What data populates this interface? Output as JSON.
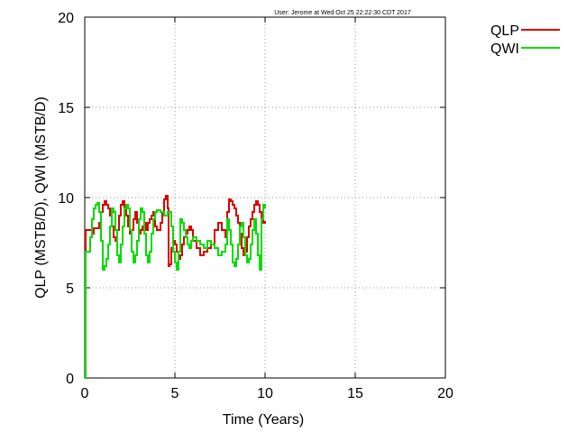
{
  "header": {
    "user_stamp": "User: Jerome at Wed Oct 25 22:22:30 CDT 2017"
  },
  "chart_data": {
    "type": "line",
    "step": true,
    "xlabel": "Time (Years)",
    "ylabel": "QLP (MSTB/D), QWI (MSTB/D)",
    "xlim": [
      0,
      20
    ],
    "ylim": [
      0,
      20
    ],
    "xticks": [
      0,
      5,
      10,
      15,
      20
    ],
    "yticks": [
      0,
      5,
      10,
      15,
      20
    ],
    "xtick_labels": [
      "0",
      "5",
      "10",
      "15",
      "20"
    ],
    "ytick_labels": [
      "0",
      "5",
      "10",
      "15",
      "20"
    ],
    "grid": true,
    "legend_position": "outside-top-right",
    "series": [
      {
        "name": "QLP",
        "color": "#dd0000",
        "x": [
          0,
          0.05,
          0.1,
          0.4,
          0.5,
          0.65,
          0.8,
          0.9,
          1.0,
          1.1,
          1.2,
          1.3,
          1.4,
          1.5,
          1.6,
          1.7,
          1.8,
          1.9,
          2.0,
          2.1,
          2.2,
          2.3,
          2.4,
          2.5,
          2.6,
          2.7,
          2.8,
          2.9,
          3.0,
          3.1,
          3.2,
          3.3,
          3.4,
          3.5,
          3.6,
          3.7,
          3.8,
          3.9,
          4.0,
          4.1,
          4.2,
          4.3,
          4.4,
          4.5,
          4.6,
          4.65,
          4.7,
          4.8,
          4.9,
          5.0,
          5.1,
          5.2,
          5.3,
          5.4,
          5.5,
          5.6,
          5.7,
          5.8,
          5.9,
          6.0,
          6.2,
          6.4,
          6.6,
          6.8,
          7.0,
          7.2,
          7.4,
          7.6,
          7.8,
          7.9,
          8.0,
          8.1,
          8.2,
          8.3,
          8.4,
          8.5,
          8.6,
          8.7,
          8.8,
          8.9,
          9.0,
          9.1,
          9.2,
          9.3,
          9.4,
          9.5,
          9.6,
          9.7,
          9.8,
          9.9,
          10.0
        ],
        "values": [
          0,
          8.2,
          8.2,
          8.0,
          8.3,
          8.3,
          8.6,
          9.2,
          9.6,
          9.8,
          9.6,
          9.4,
          9.0,
          8.4,
          7.8,
          7.6,
          8.2,
          9.0,
          9.6,
          9.8,
          9.5,
          9.0,
          8.4,
          8.0,
          8.2,
          8.8,
          9.2,
          8.6,
          8.0,
          8.2,
          8.4,
          8.6,
          8.2,
          8.6,
          8.8,
          9.0,
          9.2,
          8.4,
          8.2,
          8.2,
          8.6,
          9.2,
          9.9,
          10.1,
          9.4,
          6.2,
          6.3,
          7.2,
          7.6,
          7.4,
          7.0,
          6.6,
          6.8,
          7.4,
          7.8,
          8.0,
          8.2,
          8.4,
          8.2,
          7.6,
          7.2,
          6.8,
          7.0,
          7.2,
          7.4,
          8.2,
          8.6,
          8.2,
          7.8,
          9.2,
          9.9,
          9.8,
          9.6,
          9.4,
          9.0,
          8.6,
          8.0,
          7.2,
          6.8,
          7.0,
          7.8,
          8.4,
          8.8,
          9.2,
          9.6,
          9.8,
          9.6,
          9.2,
          8.8,
          8.6,
          8.7
        ]
      },
      {
        "name": "QWI",
        "color": "#00dd00",
        "x": [
          0,
          0.05,
          0.1,
          0.3,
          0.4,
          0.5,
          0.6,
          0.7,
          0.8,
          0.9,
          1.0,
          1.1,
          1.2,
          1.3,
          1.4,
          1.5,
          1.6,
          1.7,
          1.8,
          1.9,
          2.0,
          2.1,
          2.2,
          2.3,
          2.4,
          2.5,
          2.6,
          2.7,
          2.8,
          2.9,
          3.0,
          3.1,
          3.2,
          3.3,
          3.4,
          3.5,
          3.6,
          3.7,
          3.8,
          3.9,
          4.0,
          4.2,
          4.4,
          4.6,
          4.8,
          4.9,
          5.0,
          5.1,
          5.2,
          5.3,
          5.4,
          5.5,
          5.6,
          5.7,
          5.8,
          5.9,
          6.0,
          6.2,
          6.4,
          6.6,
          6.8,
          7.0,
          7.2,
          7.4,
          7.6,
          7.8,
          7.9,
          8.0,
          8.1,
          8.2,
          8.3,
          8.4,
          8.5,
          8.6,
          8.7,
          8.8,
          8.9,
          9.0,
          9.1,
          9.2,
          9.3,
          9.4,
          9.5,
          9.6,
          9.7,
          9.8,
          9.9,
          10.0
        ],
        "values": [
          0,
          7.0,
          7.0,
          7.8,
          8.8,
          9.4,
          9.6,
          9.7,
          9.2,
          7.6,
          6.0,
          6.2,
          6.6,
          7.4,
          8.4,
          9.4,
          9.2,
          8.2,
          6.8,
          6.4,
          7.4,
          8.4,
          9.4,
          9.6,
          9.4,
          8.2,
          7.0,
          6.4,
          6.8,
          7.6,
          8.8,
          9.4,
          9.2,
          8.0,
          6.8,
          6.4,
          7.0,
          8.0,
          8.8,
          9.2,
          9.3,
          9.2,
          9.0,
          9.2,
          8.4,
          7.0,
          6.4,
          6.0,
          7.0,
          8.8,
          8.6,
          8.2,
          7.8,
          7.4,
          7.2,
          7.6,
          7.8,
          7.6,
          7.4,
          7.2,
          7.6,
          7.4,
          7.2,
          6.8,
          7.0,
          7.4,
          8.8,
          8.2,
          7.4,
          6.4,
          6.2,
          6.6,
          7.4,
          8.4,
          8.6,
          7.8,
          6.8,
          6.4,
          6.6,
          7.4,
          8.2,
          8.8,
          8.0,
          6.8,
          6.0,
          8.8,
          9.6,
          9.4
        ]
      }
    ]
  }
}
